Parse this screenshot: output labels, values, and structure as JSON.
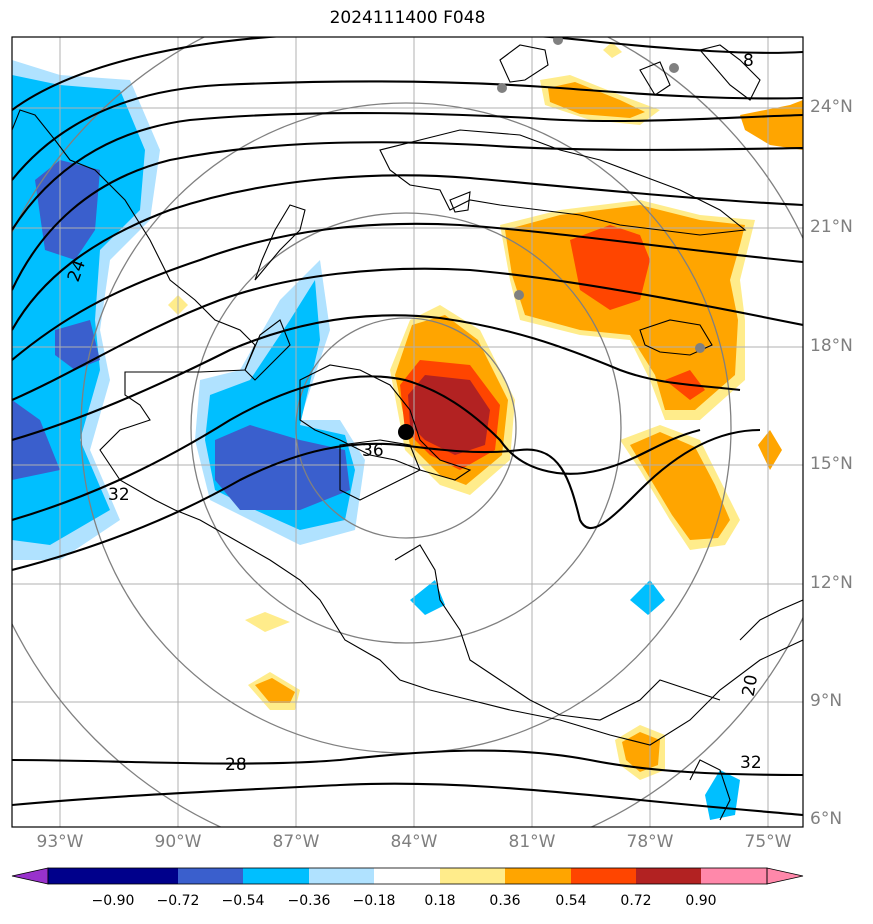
{
  "title": "2024111400 F048",
  "map": {
    "lat_labels": [
      "24°N",
      "21°N",
      "18°N",
      "15°N",
      "12°N",
      "9°N",
      "6°N"
    ],
    "lon_labels": [
      "93°W",
      "90°W",
      "87°W",
      "84°W",
      "81°W",
      "78°W",
      "75°W"
    ],
    "contour_labels": [
      "8",
      "24",
      "36",
      "32",
      "28",
      "32",
      "20"
    ],
    "colors": {
      "coast": "#000000",
      "contour": "#000000",
      "grid": "#b0b0b0",
      "range_rings": "#808080",
      "storm_center": "#000000"
    }
  },
  "colorbar": {
    "ticks": [
      "−0.90",
      "−0.72",
      "−0.54",
      "−0.36",
      "−0.18",
      "0.18",
      "0.36",
      "0.54",
      "0.72",
      "0.90"
    ],
    "colors": [
      "#9932cc",
      "#00008b",
      "#3a5fcd",
      "#00bfff",
      "#b0e2ff",
      "#ffffff",
      "#ffec8b",
      "#ffa500",
      "#ff4500",
      "#b22222",
      "#ff88aa"
    ]
  }
}
